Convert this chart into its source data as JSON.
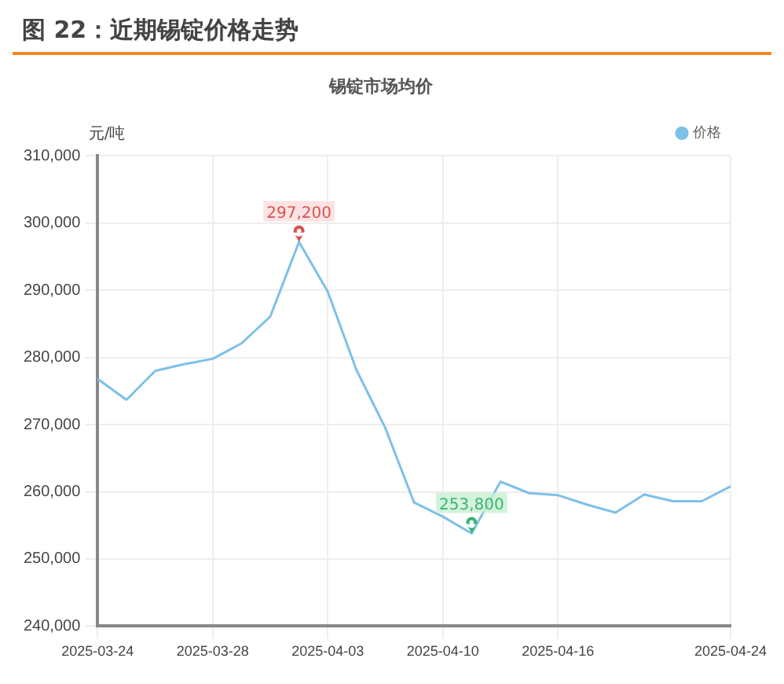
{
  "chart_data": {
    "type": "line",
    "title": "图 22：近期锡锭价格走势",
    "subtitle": "锡锭市场均价",
    "ylabel": "元/吨",
    "categories": [
      "2025-03-24",
      null,
      null,
      null,
      "2025-03-28",
      null,
      null,
      null,
      "2025-04-03",
      null,
      null,
      null,
      "2025-04-10",
      null,
      null,
      null,
      "2025-04-16",
      null,
      null,
      null,
      null,
      null,
      "2025-04-24"
    ],
    "series": [
      {
        "name": "价格",
        "color": "#7ec0e8",
        "values": [
          276800,
          273700,
          278000,
          279000,
          279800,
          282100,
          286100,
          297200,
          289800,
          278100,
          269500,
          258400,
          256300,
          253800,
          261500,
          259800,
          259500,
          258100,
          256900,
          259600,
          258600,
          258600,
          260800
        ]
      }
    ],
    "annotations": [
      {
        "text": "297,200",
        "y": 297200
      },
      {
        "text": "253,800",
        "y": 253800
      }
    ],
    "ylim": [
      240000,
      310000
    ],
    "yticks": [
      {
        "value": 240000,
        "label": "240,000"
      },
      {
        "value": 250000,
        "label": "250,000"
      },
      {
        "value": 260000,
        "label": "260,000"
      },
      {
        "value": 270000,
        "label": "270,000"
      },
      {
        "value": 280000,
        "label": "280,000"
      },
      {
        "value": 290000,
        "label": "290,000"
      },
      {
        "value": 300000,
        "label": "300,000"
      },
      {
        "value": 310000,
        "label": "310,000"
      }
    ],
    "grid": true,
    "legend": "top right",
    "marker": "none",
    "line_style": "solid"
  }
}
